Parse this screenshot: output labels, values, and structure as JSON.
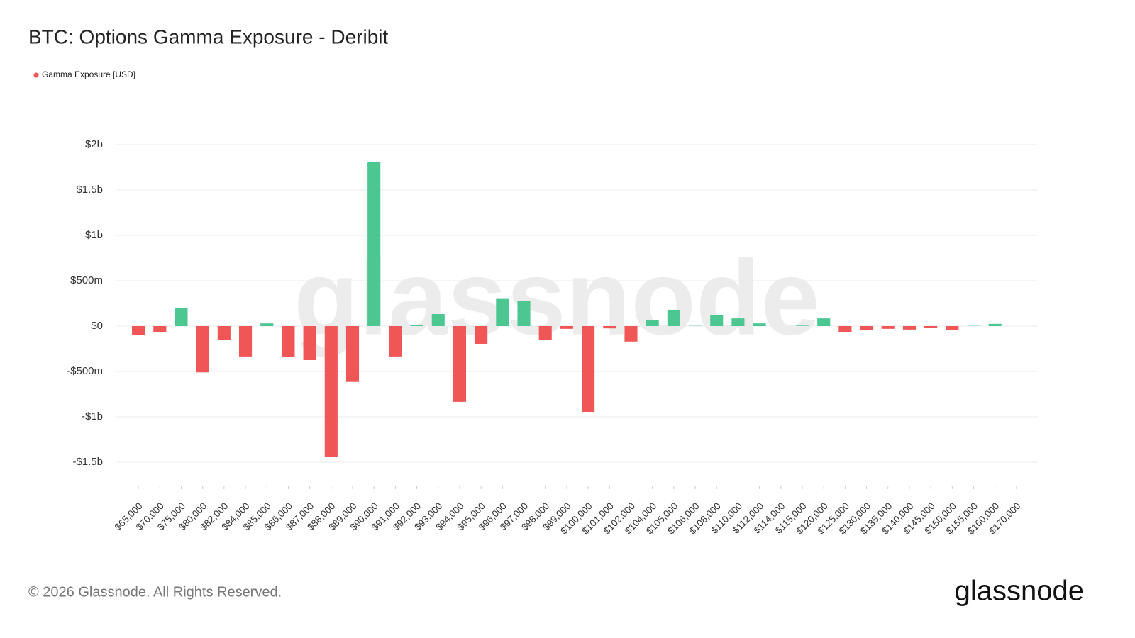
{
  "chart_data": {
    "type": "bar",
    "title": "BTC: Options Gamma Exposure - Deribit",
    "footer": "© 2026 Glassnode. All Rights Reserved.",
    "brand": "glassnode",
    "categories": [
      "$65,000",
      "$70,000",
      "$75,000",
      "$80,000",
      "$82,000",
      "$84,000",
      "$85,000",
      "$86,000",
      "$87,000",
      "$88,000",
      "$89,000",
      "$90,000",
      "$91,000",
      "$92,000",
      "$93,000",
      "$94,000",
      "$95,000",
      "$96,000",
      "$97,000",
      "$98,000",
      "$99,000",
      "$100,000",
      "$101,000",
      "$102,000",
      "$104,000",
      "$105,000",
      "$106,000",
      "$108,000",
      "$110,000",
      "$112,000",
      "$114,000",
      "$115,000",
      "$120,000",
      "$125,000",
      "$130,000",
      "$135,000",
      "$140,000",
      "$145,000",
      "$150,000",
      "$155,000",
      "$160,000",
      "$170,000"
    ],
    "series": [
      {
        "name": "Gamma Exposure [USD]",
        "color": "#f05656",
        "values": [
          -95000000,
          -70000000,
          200000000,
          -510000000,
          -155000000,
          -335000000,
          30000000,
          -340000000,
          -375000000,
          -1440000000,
          -615000000,
          1805000000,
          -335000000,
          15000000,
          133000000,
          -835000000,
          -195000000,
          300000000,
          275000000,
          -155000000,
          -30000000,
          -945000000,
          -25000000,
          -170000000,
          70000000,
          180000000,
          3000000,
          125000000,
          85000000,
          30000000,
          0,
          5000000,
          85000000,
          -70000000,
          -45000000,
          -30000000,
          -38000000,
          -18000000,
          -45000000,
          3000000,
          25000000,
          0
        ]
      }
    ],
    "positive_color": "#4cc792",
    "negative_color": "#f05656",
    "ylim": [
      -1750000000,
      2000000000
    ],
    "yticks": [
      {
        "value": -1500000000,
        "label": "-$1.5b"
      },
      {
        "value": -1000000000,
        "label": "-$1b"
      },
      {
        "value": -500000000,
        "label": "-$500m"
      },
      {
        "value": 0,
        "label": "$0"
      },
      {
        "value": 500000000,
        "label": "$500m"
      },
      {
        "value": 1000000000,
        "label": "$1b"
      },
      {
        "value": 1500000000,
        "label": "$1.5b"
      },
      {
        "value": 2000000000,
        "label": "$2b"
      }
    ],
    "grid": true
  }
}
